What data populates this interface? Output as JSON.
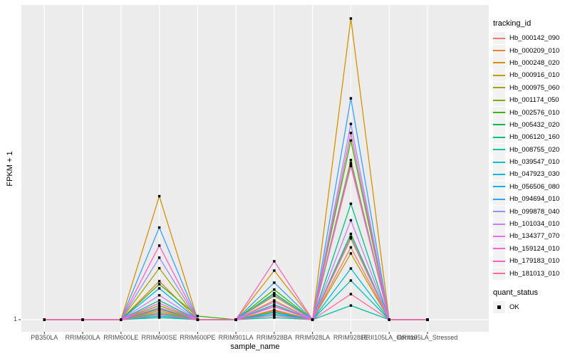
{
  "chart_data": {
    "type": "line",
    "title": "",
    "xlabel": "sample_name",
    "ylabel": "FPKM + 1",
    "y_tick_label": "1",
    "legend_position": "right",
    "grid": "white-on-gray-panel",
    "panel_bg": "#ECECEC",
    "grid_color": "#FFFFFF",
    "point_color": "#000000",
    "values_unit": "fraction_of_plot_height_above_baseline_1",
    "categories": [
      "PB350LA",
      "RRIM600LA",
      "RRIM600LE",
      "RRIM600SE",
      "RRIM600PE",
      "RRIM901LA",
      "RRIM928BA",
      "RRIM928LA",
      "RRIM928LE",
      "RRII105LA_Control",
      "RRII105LA_Stressed"
    ],
    "series": [
      {
        "name": "Hb_000142_090",
        "color": "#F8766D",
        "values": [
          0,
          0,
          0,
          0.031,
          0,
          0,
          0.033,
          0,
          0.24,
          0,
          0
        ]
      },
      {
        "name": "Hb_000209_010",
        "color": "#EA8331",
        "values": [
          0,
          0,
          0,
          0.128,
          0,
          0,
          0.064,
          0,
          0.51,
          0,
          0
        ]
      },
      {
        "name": "Hb_000248_020",
        "color": "#D89000",
        "values": [
          0,
          0,
          0,
          0.41,
          0,
          0,
          0.163,
          0,
          1,
          0,
          0
        ]
      },
      {
        "name": "Hb_000916_010",
        "color": "#C09B00",
        "values": [
          0,
          0,
          0,
          0.026,
          0,
          0,
          0.03,
          0,
          0.22,
          0,
          0
        ]
      },
      {
        "name": "Hb_000975_060",
        "color": "#A3A500",
        "values": [
          0,
          0,
          0,
          0.171,
          0,
          0,
          0.079,
          0,
          0.53,
          0,
          0
        ]
      },
      {
        "name": "Hb_001174_050",
        "color": "#7CAE00",
        "values": [
          0,
          0,
          0,
          0.047,
          0,
          0,
          0.026,
          0,
          0.27,
          0,
          0
        ]
      },
      {
        "name": "Hb_002576_010",
        "color": "#39B600",
        "values": [
          0,
          0,
          0,
          0.118,
          0.012,
          0,
          0.1,
          0,
          0.595,
          0,
          0
        ]
      },
      {
        "name": "Hb_005432_020",
        "color": "#00BB4E",
        "values": [
          0,
          0,
          0,
          0.036,
          0,
          0,
          0.088,
          0,
          0.285,
          0,
          0
        ]
      },
      {
        "name": "Hb_006120_160",
        "color": "#00C087",
        "values": [
          0,
          0,
          0,
          0.064,
          0,
          0,
          0.05,
          0,
          0.385,
          0,
          0
        ]
      },
      {
        "name": "Hb_008755_020",
        "color": "#00C1A3",
        "values": [
          0,
          0,
          0,
          0.007,
          0,
          0,
          0.007,
          0,
          0.047,
          0,
          0
        ]
      },
      {
        "name": "Hb_039547_010",
        "color": "#00BFC4",
        "values": [
          0,
          0,
          0,
          0.012,
          0,
          0,
          0.014,
          0,
          0.13,
          0,
          0
        ]
      },
      {
        "name": "Hb_047923_030",
        "color": "#00BAE0",
        "values": [
          0,
          0,
          0,
          0.021,
          0,
          0,
          0.019,
          0,
          0.17,
          0,
          0
        ]
      },
      {
        "name": "Hb_056506_080",
        "color": "#00B0F6",
        "values": [
          0,
          0,
          0,
          0.104,
          0,
          0,
          0.024,
          0,
          0.52,
          0,
          0
        ]
      },
      {
        "name": "Hb_094694_010",
        "color": "#35A2FF",
        "values": [
          0,
          0,
          0,
          0.306,
          0,
          0,
          0.123,
          0,
          0.735,
          0,
          0
        ]
      },
      {
        "name": "Hb_099878_040",
        "color": "#9590FF",
        "values": [
          0,
          0,
          0,
          0.206,
          0,
          0,
          0.083,
          0,
          0.65,
          0,
          0
        ]
      },
      {
        "name": "Hb_101034_010",
        "color": "#C77CFF",
        "values": [
          0,
          0,
          0,
          0.081,
          0,
          0,
          0.059,
          0,
          0.33,
          0,
          0
        ]
      },
      {
        "name": "Hb_134377_070",
        "color": "#E76BF3",
        "values": [
          0,
          0,
          0,
          0.04,
          0,
          0,
          0.043,
          0,
          0.275,
          0,
          0
        ]
      },
      {
        "name": "Hb_159124_010",
        "color": "#FA62DB",
        "values": [
          0,
          0,
          0,
          0.055,
          0,
          0,
          0.045,
          0,
          0.515,
          0,
          0
        ]
      },
      {
        "name": "Hb_179183_010",
        "color": "#FF62BC",
        "values": [
          0,
          0,
          0,
          0.246,
          0,
          0,
          0.194,
          0,
          0.62,
          0,
          0
        ]
      },
      {
        "name": "Hb_181013_010",
        "color": "#FF6A98",
        "values": [
          0,
          0,
          0,
          0.017,
          0,
          0,
          0.014,
          0,
          0.085,
          0,
          0
        ]
      }
    ]
  },
  "legend": {
    "tracking_title": "tracking_id",
    "quant_title": "quant_status",
    "quant_items": [
      {
        "label": "OK",
        "marker": "black-square"
      }
    ]
  }
}
